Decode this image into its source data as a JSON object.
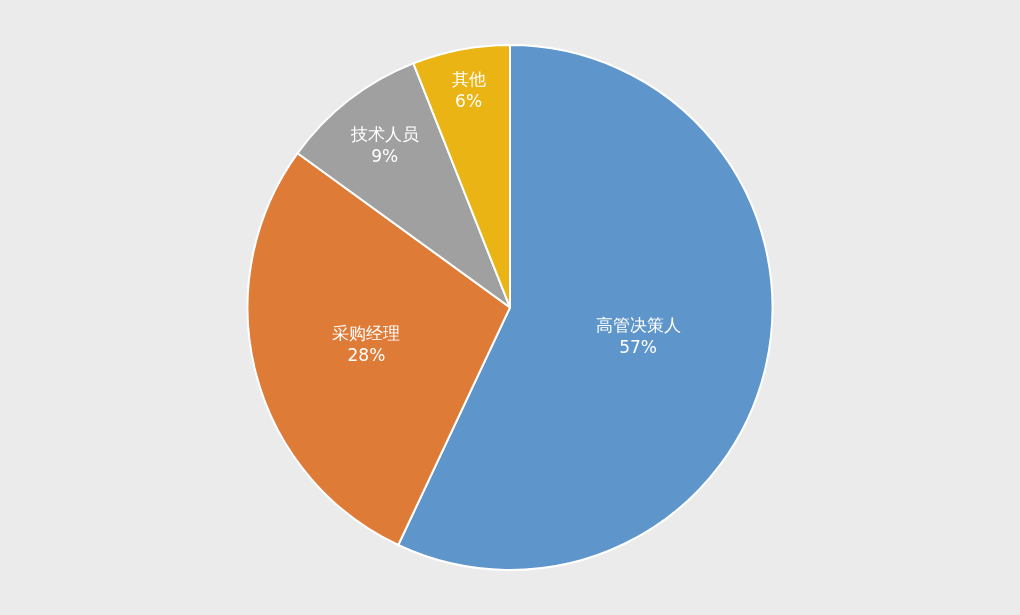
{
  "chart_data": {
    "type": "pie",
    "categories": [
      "高管决策人",
      "采购经理",
      "技术人员",
      "其他"
    ],
    "values": [
      57,
      28,
      9,
      6
    ],
    "value_labels": [
      "57%",
      "28%",
      "9%",
      "6%"
    ],
    "colors": [
      "#5e95ca",
      "#de7b37",
      "#a0a0a0",
      "#e9b414"
    ],
    "legend": false
  }
}
